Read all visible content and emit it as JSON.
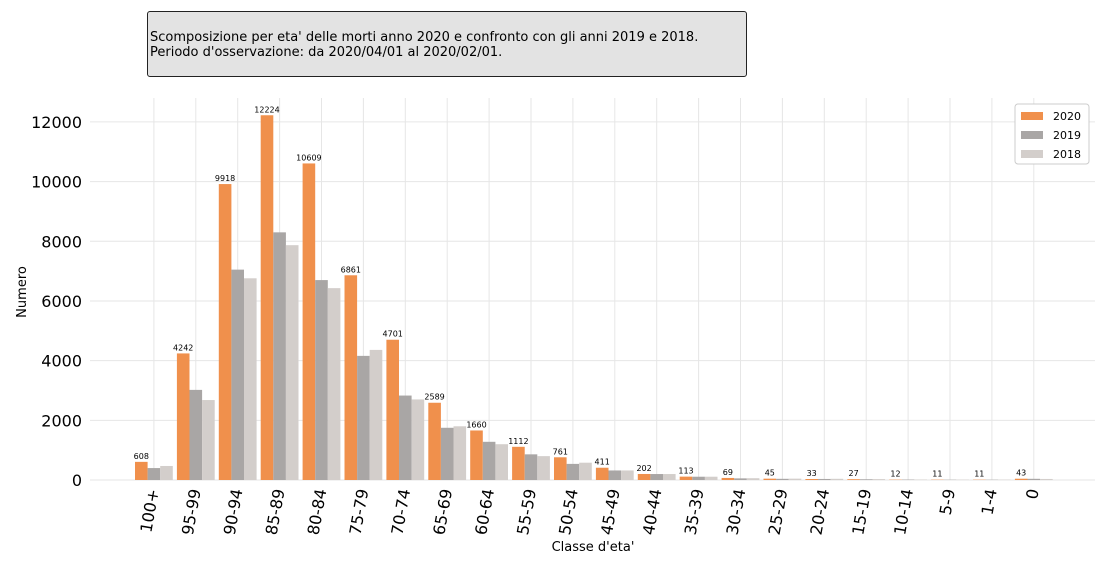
{
  "header": {
    "line1": "Scomposizione per eta' delle morti anno 2020 e confronto con gli anni 2019 e 2018.",
    "line2": "Periodo d'osservazione: da 2020/04/01 al 2020/02/01."
  },
  "chart_data": {
    "type": "bar",
    "title": "",
    "xlabel": "Classe d'eta'",
    "ylabel": "Numero",
    "ylim": [
      0,
      12800
    ],
    "yticks": [
      0,
      2000,
      4000,
      6000,
      8000,
      10000,
      12000
    ],
    "grid": true,
    "legend_position": "top-right",
    "categories": [
      "100+",
      "95-99",
      "90-94",
      "85-89",
      "80-84",
      "75-79",
      "70-74",
      "65-69",
      "60-64",
      "55-59",
      "50-54",
      "45-49",
      "40-44",
      "35-39",
      "30-34",
      "25-29",
      "20-24",
      "15-19",
      "10-14",
      "5-9",
      "1-4",
      "0"
    ],
    "series": [
      {
        "name": "2020",
        "color": "#f0904c",
        "values": [
          608,
          4242,
          9918,
          12224,
          10609,
          6861,
          4701,
          2589,
          1660,
          1112,
          761,
          411,
          202,
          113,
          69,
          45,
          33,
          27,
          12,
          11,
          11,
          43
        ],
        "labels": [
          "608",
          "4242",
          "9918",
          "12224",
          "10609",
          "6861",
          "4701",
          "2589",
          "1660",
          "1112",
          "761",
          "411",
          "202",
          "113",
          "69",
          "45",
          "33",
          "27",
          "12",
          "11",
          "11",
          "43"
        ]
      },
      {
        "name": "2019",
        "color": "#a9a6a5",
        "values": [
          400,
          3020,
          7050,
          8300,
          6700,
          4160,
          2830,
          1750,
          1280,
          860,
          540,
          320,
          200,
          110,
          55,
          40,
          35,
          25,
          15,
          10,
          10,
          40
        ]
      },
      {
        "name": "2018",
        "color": "#d3cecb",
        "values": [
          470,
          2680,
          6760,
          7870,
          6430,
          4360,
          2700,
          1800,
          1200,
          800,
          580,
          320,
          200,
          110,
          60,
          45,
          40,
          30,
          15,
          12,
          12,
          35
        ]
      }
    ]
  }
}
